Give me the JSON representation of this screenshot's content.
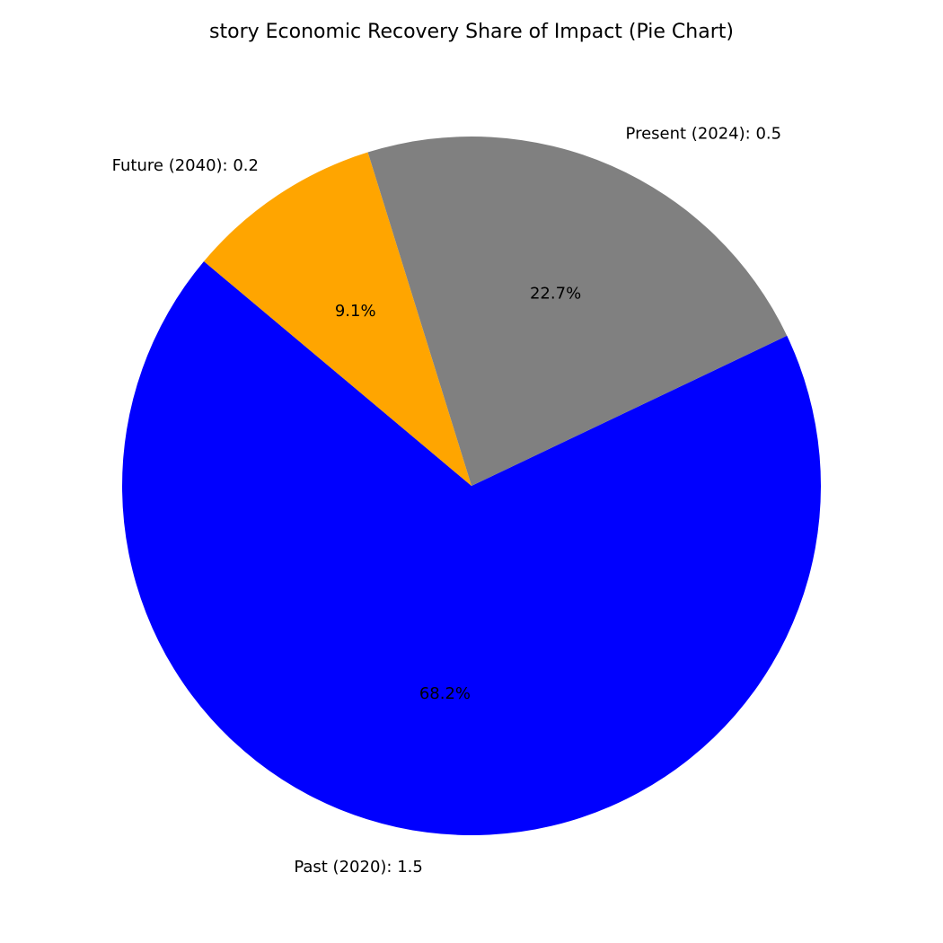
{
  "chart_data": {
    "type": "pie",
    "title": "story Economic Recovery Share of Impact (Pie Chart)",
    "categories": [
      "Past (2020)",
      "Present (2024)",
      "Future (2040)"
    ],
    "values": [
      1.5,
      0.5,
      0.2
    ],
    "labels": [
      "Past (2020): 1.5",
      "Present (2024): 0.5",
      "Future (2040): 0.2"
    ],
    "percent_labels": [
      "68.2%",
      "22.7%",
      "9.1%"
    ],
    "colors": [
      "#0000ff",
      "#808080",
      "#ffa500"
    ],
    "start_angle_deg": 140,
    "direction": "counterclockwise"
  }
}
